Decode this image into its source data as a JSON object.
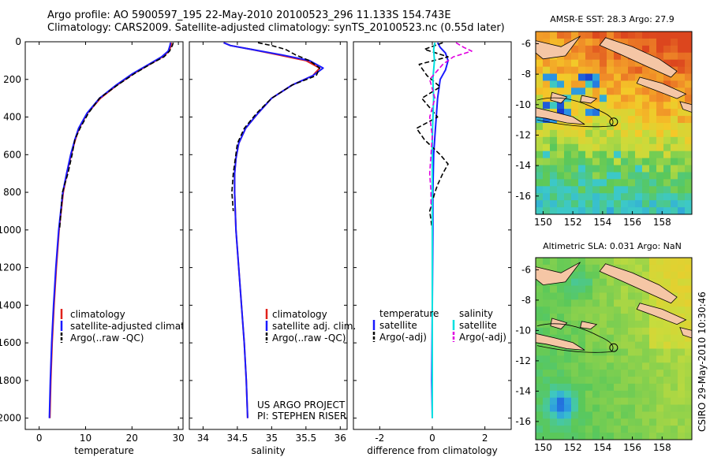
{
  "header": {
    "line1": "Argo profile: AO 5900597_195 22-May-2010 20100523_296 11.133S 154.743E",
    "line2": "Climatology: CARS2009. Satellite-adjusted climatology: synTS_20100523.nc (0.55d later)"
  },
  "side_stamp": "CSIRO 29-May-2010 10:30:46",
  "credit": {
    "line1": "US ARGO PROJECT",
    "line2": "PI: STEPHEN RISER"
  },
  "chart_data": [
    {
      "type": "line",
      "name": "temperature-profile",
      "xlabel": "temperature",
      "ylabel": "",
      "xlim": [
        -3,
        31
      ],
      "ylim": [
        2060,
        0
      ],
      "xticks": [
        "0",
        "10",
        "20",
        "30"
      ],
      "xtick_values": [
        0,
        10,
        20,
        30
      ],
      "yticks": [
        "0",
        "200",
        "400",
        "600",
        "800",
        "1000",
        "1200",
        "1400",
        "1600",
        "1800",
        "2000"
      ],
      "ytick_values": [
        0,
        200,
        400,
        600,
        800,
        1000,
        1200,
        1400,
        1600,
        1800,
        2000
      ],
      "legend": [
        "climatology",
        "satellite-adjusted climatology",
        "Argo(..raw -QC)"
      ],
      "series": [
        {
          "name": "climatology",
          "color": "#e0201a",
          "dash": false,
          "depth": [
            5,
            20,
            50,
            80,
            120,
            170,
            230,
            300,
            380,
            460,
            520,
            600,
            700,
            800,
            1000,
            1200,
            1400,
            1600,
            1800,
            2000
          ],
          "values": [
            28.5,
            28.4,
            28.0,
            26.6,
            23.8,
            20.3,
            16.8,
            13.2,
            10.4,
            8.6,
            7.8,
            6.9,
            6.0,
            5.2,
            4.3,
            3.7,
            3.2,
            2.8,
            2.5,
            2.3
          ]
        },
        {
          "name": "satellite-adjusted climatology",
          "color": "#1a1aff",
          "dash": false,
          "depth": [
            5,
            20,
            50,
            80,
            120,
            170,
            230,
            300,
            380,
            460,
            520,
            600,
            700,
            800,
            1000,
            1200,
            1400,
            1600,
            1800,
            2000
          ],
          "values": [
            28.3,
            28.2,
            27.8,
            26.4,
            23.6,
            20.1,
            16.6,
            13.0,
            10.3,
            8.5,
            7.7,
            6.8,
            5.9,
            5.1,
            4.2,
            3.6,
            3.1,
            2.7,
            2.4,
            2.2
          ]
        },
        {
          "name": "Argo(..raw -QC)",
          "color": "#000000",
          "dash": true,
          "depth": [
            5,
            20,
            50,
            80,
            120,
            170,
            230,
            300,
            380,
            460,
            520,
            600,
            700,
            800,
            1000
          ],
          "values": [
            28.9,
            28.7,
            28.1,
            26.9,
            23.9,
            20.5,
            16.9,
            13.0,
            10.6,
            8.8,
            7.7,
            7.1,
            6.2,
            5.0,
            4.4
          ]
        }
      ]
    },
    {
      "type": "line",
      "name": "salinity-profile",
      "xlabel": "salinity",
      "ylabel": "",
      "xlim": [
        33.8,
        36.1
      ],
      "ylim": [
        2060,
        0
      ],
      "xticks": [
        "34",
        "34.5",
        "35",
        "35.5",
        "36"
      ],
      "xtick_values": [
        34,
        34.5,
        35,
        35.5,
        36
      ],
      "legend": [
        "climatology",
        "satellite adj. clim.",
        "Argo(..raw -QC)"
      ],
      "series": [
        {
          "name": "climatology",
          "color": "#e0201a",
          "dash": false,
          "depth": [
            5,
            20,
            40,
            70,
            100,
            140,
            180,
            230,
            300,
            380,
            460,
            540,
            620,
            700,
            800,
            1000,
            1200,
            1400,
            1600,
            1800,
            2000
          ],
          "values": [
            34.3,
            34.4,
            34.7,
            35.1,
            35.5,
            35.7,
            35.6,
            35.3,
            35.0,
            34.8,
            34.62,
            34.52,
            34.48,
            34.46,
            34.46,
            34.48,
            34.52,
            34.56,
            34.6,
            34.63,
            34.65
          ]
        },
        {
          "name": "satellite adj. clim.",
          "color": "#1a1aff",
          "dash": false,
          "depth": [
            5,
            20,
            40,
            70,
            100,
            140,
            180,
            230,
            300,
            380,
            460,
            540,
            620,
            700,
            800,
            1000,
            1200,
            1400,
            1600,
            1800,
            2000
          ],
          "values": [
            34.3,
            34.4,
            34.7,
            35.15,
            35.55,
            35.75,
            35.6,
            35.3,
            35.0,
            34.8,
            34.62,
            34.52,
            34.48,
            34.46,
            34.46,
            34.48,
            34.52,
            34.56,
            34.6,
            34.63,
            34.65
          ]
        },
        {
          "name": "Argo(..raw -QC)",
          "color": "#000000",
          "dash": true,
          "depth": [
            5,
            20,
            40,
            70,
            100,
            140,
            180,
            230,
            300,
            380,
            460,
            540,
            620,
            700,
            800,
            900
          ],
          "values": [
            34.8,
            35.0,
            35.2,
            35.35,
            35.55,
            35.7,
            35.65,
            35.3,
            35.0,
            34.78,
            34.6,
            34.5,
            34.47,
            34.44,
            34.42,
            34.44
          ]
        }
      ]
    },
    {
      "type": "line",
      "name": "difference-profile",
      "xlabel": "difference from climatology",
      "ylabel": "",
      "xlim": [
        -3,
        3
      ],
      "ylim": [
        2060,
        0
      ],
      "xticks": [
        "-2",
        "0",
        "2"
      ],
      "xtick_values": [
        -2,
        0,
        2
      ],
      "legend_groups": [
        {
          "heading": "temperature",
          "items": [
            "satellite",
            "Argo(-adj)"
          ]
        },
        {
          "heading": "salinity",
          "items": [
            "satellite",
            "Argo(-adj)"
          ]
        }
      ],
      "series": [
        {
          "name": "temperature satellite",
          "color": "#1a1aff",
          "dash": false,
          "depth": [
            5,
            30,
            60,
            100,
            150,
            200,
            300,
            400,
            500,
            600,
            800,
            1000,
            1400,
            1800,
            2000
          ],
          "values": [
            0.2,
            0.3,
            0.5,
            0.6,
            0.5,
            0.3,
            0.2,
            0.15,
            0.1,
            0.05,
            0.02,
            0.02,
            0.0,
            -0.02,
            0.0
          ]
        },
        {
          "name": "temperature Argo(-adj)",
          "color": "#000000",
          "dash": true,
          "depth": [
            5,
            40,
            80,
            120,
            180,
            240,
            300,
            400,
            460,
            520,
            600,
            650,
            700,
            760,
            800,
            900,
            1000
          ],
          "values": [
            0.4,
            -0.3,
            0.6,
            -0.5,
            -0.2,
            0.3,
            -0.4,
            0.2,
            -0.6,
            -0.3,
            0.3,
            0.6,
            0.4,
            0.2,
            0.1,
            -0.1,
            0.0
          ]
        },
        {
          "name": "salinity satellite",
          "color": "#00e0e0",
          "dash": false,
          "depth": [
            5,
            40,
            100,
            200,
            300,
            500,
            800,
            1200,
            1600,
            2000
          ],
          "values": [
            0.1,
            0.05,
            0.08,
            0.02,
            0.05,
            0.0,
            0.0,
            0.0,
            0.0,
            0.0
          ]
        },
        {
          "name": "salinity Argo(-adj)",
          "color": "#e000e0",
          "dash": true,
          "depth": [
            5,
            30,
            50,
            80,
            120,
            200,
            300,
            400,
            500,
            600,
            700,
            800,
            880
          ],
          "values": [
            0.9,
            1.2,
            1.5,
            0.8,
            0.4,
            -0.1,
            0.1,
            -0.1,
            0.0,
            -0.05,
            -0.1,
            -0.05,
            -0.05
          ]
        }
      ]
    }
  ],
  "maps": [
    {
      "name": "sst-map",
      "title": "AMSR-E SST: 28.3 Argo: 27.9",
      "yticks": [
        "-6",
        "-8",
        "-10",
        "-12",
        "-14",
        "-16"
      ],
      "ytick_values": [
        -6,
        -8,
        -10,
        -12,
        -14,
        -16
      ],
      "xticks": [
        "150",
        "152",
        "154",
        "156",
        "158"
      ],
      "xtick_values": [
        150,
        152,
        154,
        156,
        158
      ],
      "xlim": [
        149.5,
        160
      ],
      "ylim": [
        -17.2,
        -5.2
      ],
      "float_lon": 154.743,
      "float_lat": -11.133
    },
    {
      "name": "sla-map",
      "title": "Altimetric SLA: 0.031 Argo: NaN",
      "yticks": [
        "-6",
        "-8",
        "-10",
        "-12",
        "-14",
        "-16"
      ],
      "ytick_values": [
        -6,
        -8,
        -10,
        -12,
        -14,
        -16
      ],
      "xticks": [
        "150",
        "152",
        "154",
        "156",
        "158"
      ],
      "xtick_values": [
        150,
        152,
        154,
        156,
        158
      ],
      "xlim": [
        149.5,
        160
      ],
      "ylim": [
        -17.2,
        -5.2
      ],
      "float_lon": 154.743,
      "float_lat": -11.133
    }
  ]
}
